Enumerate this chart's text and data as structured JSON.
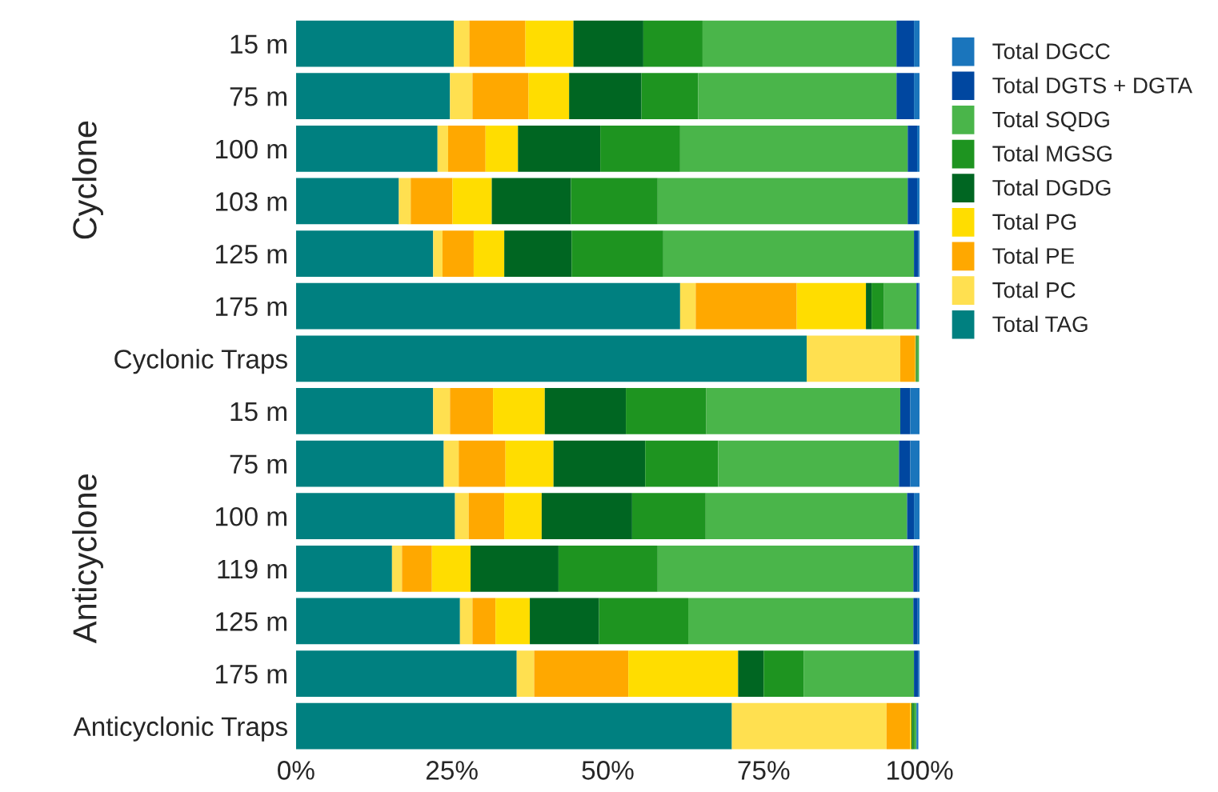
{
  "chart_data": {
    "type": "bar",
    "orientation": "horizontal",
    "stacked": true,
    "categories": [
      "15 m",
      "75 m",
      "100 m",
      "103 m",
      "125 m",
      "175 m",
      "Cyclonic Traps",
      "15 m",
      "75 m",
      "100 m",
      "119 m",
      "125 m",
      "175 m",
      "Anticyclonic Traps"
    ],
    "series": [
      {
        "name": "Total TAG",
        "color": "#008080",
        "values": [
          25.3,
          24.7,
          22.7,
          16.5,
          22.0,
          61.6,
          81.9,
          22.0,
          23.7,
          25.5,
          15.4,
          26.3,
          35.4,
          69.9
        ]
      },
      {
        "name": "Total PC",
        "color": "#ffe050",
        "values": [
          2.5,
          3.6,
          1.7,
          1.9,
          1.5,
          2.5,
          15.0,
          2.7,
          2.4,
          2.2,
          1.6,
          2.0,
          2.8,
          24.8
        ]
      },
      {
        "name": "Total PE",
        "color": "#ffa800",
        "values": [
          9.0,
          9.0,
          6.0,
          6.7,
          5.0,
          16.2,
          2.4,
          6.9,
          7.5,
          5.7,
          4.8,
          3.7,
          15.1,
          3.8
        ]
      },
      {
        "name": "Total PG",
        "color": "#ffdd00",
        "values": [
          7.7,
          6.5,
          5.2,
          6.3,
          4.9,
          11.1,
          0.1,
          8.3,
          7.7,
          6.0,
          6.2,
          5.5,
          17.6,
          0.2
        ]
      },
      {
        "name": "Total DGDG",
        "color": "#006622",
        "values": [
          11.2,
          11.6,
          13.2,
          12.7,
          10.8,
          0.9,
          0.1,
          13.0,
          14.7,
          14.5,
          14.1,
          11.1,
          4.1,
          0.2
        ]
      },
      {
        "name": "Total MGSG",
        "color": "#1e9420",
        "values": [
          9.5,
          9.1,
          12.8,
          13.9,
          14.7,
          2.0,
          0.2,
          12.9,
          11.7,
          11.8,
          15.9,
          14.3,
          6.4,
          0.3
        ]
      },
      {
        "name": "Total SQDG",
        "color": "#4ab54a",
        "values": [
          31.1,
          31.8,
          36.5,
          40.1,
          40.2,
          5.2,
          0.2,
          31.1,
          29.0,
          32.3,
          41.0,
          36.1,
          17.7,
          0.3
        ]
      },
      {
        "name": "Total DGTS + DGTA",
        "color": "#0047a0",
        "values": [
          2.8,
          2.8,
          1.5,
          1.5,
          0.7,
          0.3,
          null,
          1.6,
          1.8,
          1.1,
          0.7,
          0.7,
          0.7,
          null
        ]
      },
      {
        "name": "Total DGCC",
        "color": "#1a75bc",
        "values": [
          0.9,
          0.9,
          0.4,
          0.4,
          0.2,
          0.2,
          null,
          1.5,
          1.5,
          0.9,
          0.3,
          0.3,
          0.2,
          0.3
        ]
      }
    ],
    "xlim": [
      0,
      100
    ],
    "xticks": [
      {
        "value": 0,
        "label": "0%"
      },
      {
        "value": 25,
        "label": "25%"
      },
      {
        "value": 50,
        "label": "50%"
      },
      {
        "value": 75,
        "label": "75%"
      },
      {
        "value": 100,
        "label": "100%"
      }
    ],
    "annotations": [
      "Cyclone",
      "Anticyclone"
    ],
    "legend": "top right",
    "grid": false
  }
}
